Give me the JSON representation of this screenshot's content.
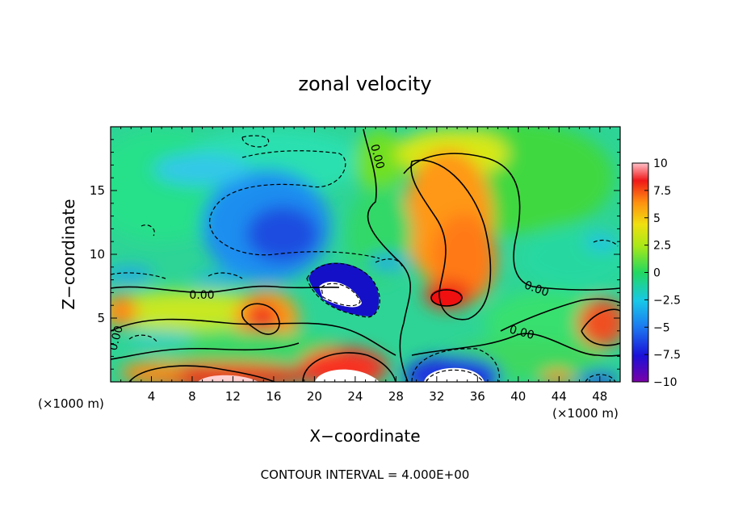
{
  "chart_data": {
    "type": "heatmap",
    "title": "zonal velocity",
    "xlabel": "X−coordinate",
    "ylabel": "Z−coordinate",
    "x_unit_left": "(×1000 m)",
    "x_unit_right": "(×1000 m)",
    "xlim": [
      0,
      50
    ],
    "ylim": [
      0,
      20
    ],
    "xticks": [
      "4",
      "8",
      "12",
      "16",
      "20",
      "24",
      "28",
      "32",
      "36",
      "40",
      "44",
      "48"
    ],
    "xtick_values": [
      4,
      8,
      12,
      16,
      20,
      24,
      28,
      32,
      36,
      40,
      44,
      48
    ],
    "yticks": [
      "5",
      "10",
      "15"
    ],
    "ytick_values": [
      5,
      10,
      15
    ],
    "colorbar": {
      "min": -10,
      "max": 10,
      "ticks": [
        "10",
        "7.5",
        "5",
        "2.5",
        "0",
        "−2.5",
        "−5",
        "−7.5",
        "−10"
      ],
      "tick_values": [
        10,
        7.5,
        5,
        2.5,
        0,
        -2.5,
        -5,
        -7.5,
        -10
      ]
    },
    "contour_labels": [
      "0.00",
      "0.00",
      "0.00",
      "0.00",
      "0.00"
    ],
    "footer": "CONTOUR INTERVAL = 4.000E+00",
    "features": [
      {
        "x": 35,
        "y": 13.5,
        "value": 6
      },
      {
        "x": 33,
        "y": 6.8,
        "value": 8.5
      },
      {
        "x": 22.5,
        "y": 7,
        "value": -10.5
      },
      {
        "x": 17,
        "y": 11.5,
        "value": -6
      },
      {
        "x": 33,
        "y": 0.5,
        "value": -11
      },
      {
        "x": 22,
        "y": 0.6,
        "value": 11
      },
      {
        "x": 11,
        "y": 0.4,
        "value": 9.5
      },
      {
        "x": 15,
        "y": 5,
        "value": 7
      },
      {
        "x": 48,
        "y": 4.5,
        "value": 6.5
      }
    ]
  }
}
